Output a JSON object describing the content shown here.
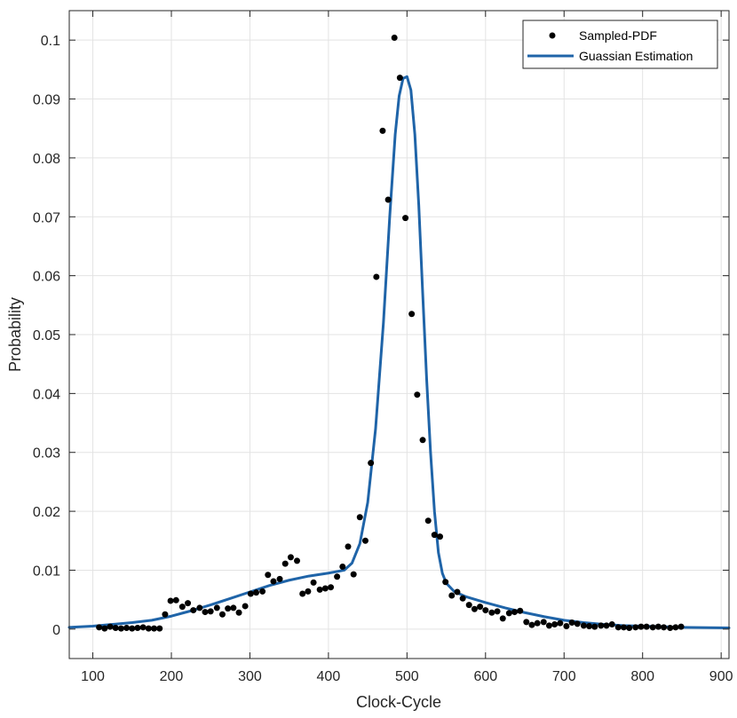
{
  "chart_data": {
    "type": "scatter",
    "title": "",
    "xlabel": "Clock-Cycle",
    "ylabel": "Probability",
    "xlim": [
      70,
      910
    ],
    "ylim": [
      -0.005,
      0.105
    ],
    "xticks": [
      100,
      200,
      300,
      400,
      500,
      600,
      700,
      800,
      900
    ],
    "xtick_labels": [
      "100",
      "200",
      "300",
      "400",
      "500",
      "600",
      "700",
      "800",
      "900"
    ],
    "yticks": [
      0,
      0.01,
      0.02,
      0.03,
      0.04,
      0.05,
      0.06,
      0.07,
      0.08,
      0.09,
      0.1
    ],
    "ytick_labels": [
      "0",
      "0.01",
      "0.02",
      "0.03",
      "0.04",
      "0.05",
      "0.06",
      "0.07",
      "0.08",
      "0.09",
      "0.1"
    ],
    "grid": true,
    "legend_position": "top-right",
    "series": [
      {
        "name": "Sampled-PDF",
        "style": "markers",
        "color": "#000000",
        "points": [
          [
            108,
            0.0003
          ],
          [
            115,
            0.0001
          ],
          [
            122,
            0.0004
          ],
          [
            129,
            0.0002
          ],
          [
            136,
            0.0001
          ],
          [
            143,
            0.0002
          ],
          [
            150,
            0.0001
          ],
          [
            157,
            0.0002
          ],
          [
            164,
            0.0003
          ],
          [
            171,
            0.0001
          ],
          [
            178,
            0.0001
          ],
          [
            185,
            0.0001
          ],
          [
            192,
            0.0025
          ],
          [
            199,
            0.0048
          ],
          [
            206,
            0.0049
          ],
          [
            214,
            0.0038
          ],
          [
            221,
            0.0044
          ],
          [
            228,
            0.0032
          ],
          [
            236,
            0.0036
          ],
          [
            243,
            0.0029
          ],
          [
            250,
            0.003
          ],
          [
            258,
            0.0036
          ],
          [
            265,
            0.0025
          ],
          [
            272,
            0.0035
          ],
          [
            279,
            0.0036
          ],
          [
            286,
            0.0028
          ],
          [
            294,
            0.0039
          ],
          [
            301,
            0.006
          ],
          [
            308,
            0.0062
          ],
          [
            316,
            0.0064
          ],
          [
            323,
            0.0092
          ],
          [
            330,
            0.0081
          ],
          [
            338,
            0.0085
          ],
          [
            345,
            0.0111
          ],
          [
            352,
            0.0122
          ],
          [
            360,
            0.0116
          ],
          [
            367,
            0.006
          ],
          [
            374,
            0.0064
          ],
          [
            381,
            0.0079
          ],
          [
            389,
            0.0067
          ],
          [
            396,
            0.0069
          ],
          [
            403,
            0.0071
          ],
          [
            411,
            0.0089
          ],
          [
            418,
            0.0106
          ],
          [
            425,
            0.014
          ],
          [
            432,
            0.0093
          ],
          [
            440,
            0.019
          ],
          [
            447,
            0.015
          ],
          [
            454,
            0.0282
          ],
          [
            461,
            0.0598
          ],
          [
            469,
            0.0846
          ],
          [
            476,
            0.0729
          ],
          [
            484,
            0.1004
          ],
          [
            491,
            0.0936
          ],
          [
            498,
            0.0698
          ],
          [
            506,
            0.0535
          ],
          [
            513,
            0.0398
          ],
          [
            520,
            0.0321
          ],
          [
            527,
            0.0184
          ],
          [
            535,
            0.016
          ],
          [
            542,
            0.0157
          ],
          [
            549,
            0.008
          ],
          [
            557,
            0.0057
          ],
          [
            564,
            0.0063
          ],
          [
            571,
            0.0052
          ],
          [
            579,
            0.0041
          ],
          [
            586,
            0.0034
          ],
          [
            593,
            0.0038
          ],
          [
            600,
            0.0032
          ],
          [
            608,
            0.0028
          ],
          [
            615,
            0.003
          ],
          [
            622,
            0.0018
          ],
          [
            630,
            0.0027
          ],
          [
            637,
            0.0029
          ],
          [
            644,
            0.0031
          ],
          [
            652,
            0.0012
          ],
          [
            659,
            0.0007
          ],
          [
            666,
            0.001
          ],
          [
            674,
            0.0012
          ],
          [
            681,
            0.0006
          ],
          [
            688,
            0.0008
          ],
          [
            695,
            0.001
          ],
          [
            703,
            0.0005
          ],
          [
            710,
            0.0011
          ],
          [
            717,
            0.0009
          ],
          [
            725,
            0.0006
          ],
          [
            732,
            0.0005
          ],
          [
            739,
            0.0004
          ],
          [
            747,
            0.0006
          ],
          [
            754,
            0.0006
          ],
          [
            761,
            0.0008
          ],
          [
            769,
            0.0003
          ],
          [
            776,
            0.0003
          ],
          [
            783,
            0.0002
          ],
          [
            791,
            0.0003
          ],
          [
            798,
            0.0004
          ],
          [
            805,
            0.0004
          ],
          [
            813,
            0.0003
          ],
          [
            820,
            0.0004
          ],
          [
            827,
            0.0003
          ],
          [
            835,
            0.0002
          ],
          [
            842,
            0.0003
          ],
          [
            849,
            0.0004
          ]
        ]
      },
      {
        "name": "Guassian Estimation",
        "style": "line",
        "color": "#1f64a8",
        "points": [
          [
            70,
            0.0003
          ],
          [
            100,
            0.0005
          ],
          [
            125,
            0.0008
          ],
          [
            150,
            0.0011
          ],
          [
            175,
            0.0015
          ],
          [
            200,
            0.0022
          ],
          [
            225,
            0.0031
          ],
          [
            250,
            0.0041
          ],
          [
            275,
            0.0052
          ],
          [
            300,
            0.0063
          ],
          [
            325,
            0.0074
          ],
          [
            350,
            0.0083
          ],
          [
            375,
            0.009
          ],
          [
            400,
            0.0095
          ],
          [
            420,
            0.01
          ],
          [
            430,
            0.0112
          ],
          [
            440,
            0.0145
          ],
          [
            450,
            0.0215
          ],
          [
            460,
            0.034
          ],
          [
            470,
            0.052
          ],
          [
            478,
            0.07
          ],
          [
            485,
            0.084
          ],
          [
            490,
            0.0905
          ],
          [
            495,
            0.0935
          ],
          [
            500,
            0.0938
          ],
          [
            505,
            0.0915
          ],
          [
            510,
            0.084
          ],
          [
            515,
            0.072
          ],
          [
            520,
            0.057
          ],
          [
            525,
            0.0425
          ],
          [
            530,
            0.03
          ],
          [
            535,
            0.02
          ],
          [
            540,
            0.013
          ],
          [
            545,
            0.0095
          ],
          [
            550,
            0.0078
          ],
          [
            560,
            0.0064
          ],
          [
            575,
            0.0055
          ],
          [
            600,
            0.0045
          ],
          [
            625,
            0.0036
          ],
          [
            650,
            0.0028
          ],
          [
            675,
            0.0021
          ],
          [
            700,
            0.0015
          ],
          [
            725,
            0.0011
          ],
          [
            750,
            0.0008
          ],
          [
            775,
            0.0006
          ],
          [
            800,
            0.0005
          ],
          [
            850,
            0.0003
          ],
          [
            910,
            0.0002
          ]
        ]
      }
    ]
  }
}
